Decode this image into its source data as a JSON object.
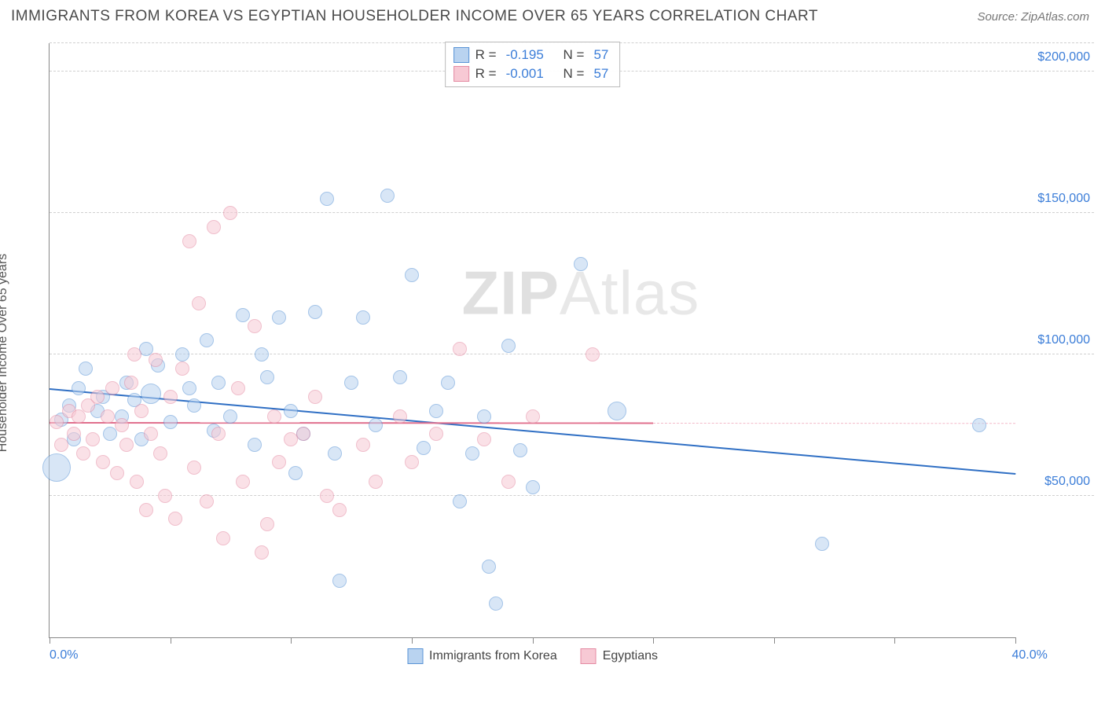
{
  "header": {
    "title": "IMMIGRANTS FROM KOREA VS EGYPTIAN HOUSEHOLDER INCOME OVER 65 YEARS CORRELATION CHART",
    "source": "Source: ZipAtlas.com"
  },
  "watermark": {
    "part1": "ZIP",
    "part2": "Atlas"
  },
  "chart": {
    "type": "scatter",
    "y_axis_label": "Householder Income Over 65 years",
    "background_color": "#ffffff",
    "grid_color": "#d0d0d0",
    "axis_color": "#888888",
    "xlim": [
      0,
      40
    ],
    "ylim": [
      0,
      210000
    ],
    "x_ticks_pct": [
      0,
      12.5,
      25,
      37.5,
      50,
      62.5,
      75,
      87.5,
      100
    ],
    "x_tick_labels": {
      "start": "0.0%",
      "end": "40.0%"
    },
    "y_gridlines": [
      50000,
      100000,
      150000,
      200000
    ],
    "y_tick_labels": [
      "$50,000",
      "$100,000",
      "$150,000",
      "$200,000"
    ],
    "legend_top": [
      {
        "swatch_fill": "#b9d3f0",
        "swatch_border": "#5a94d6",
        "r_label": "R =",
        "r": "-0.195",
        "n_label": "N =",
        "n": "57"
      },
      {
        "swatch_fill": "#f7c9d4",
        "swatch_border": "#e48ba3",
        "r_label": "R =",
        "r": "-0.001",
        "n_label": "N =",
        "n": "57"
      }
    ],
    "legend_bottom": [
      {
        "label": "Immigrants from Korea",
        "swatch_fill": "#b9d3f0",
        "swatch_border": "#5a94d6"
      },
      {
        "label": "Egyptians",
        "swatch_fill": "#f7c9d4",
        "swatch_border": "#e48ba3"
      }
    ],
    "series": [
      {
        "name": "korea",
        "fill": "#b9d3f0",
        "stroke": "#5a94d6",
        "fill_opacity": 0.55,
        "marker_radius": 9,
        "trend": {
          "y_at_x0": 88000,
          "y_at_x40": 58000,
          "color": "#2f6fc4",
          "dash_color": "#9bbce6"
        },
        "points": [
          {
            "x": 0.3,
            "y": 60000,
            "r": 18
          },
          {
            "x": 0.5,
            "y": 77000
          },
          {
            "x": 0.8,
            "y": 82000
          },
          {
            "x": 1.0,
            "y": 70000
          },
          {
            "x": 1.2,
            "y": 88000
          },
          {
            "x": 1.5,
            "y": 95000
          },
          {
            "x": 2.0,
            "y": 80000
          },
          {
            "x": 2.2,
            "y": 85000
          },
          {
            "x": 2.5,
            "y": 72000
          },
          {
            "x": 3.0,
            "y": 78000
          },
          {
            "x": 3.2,
            "y": 90000
          },
          {
            "x": 3.5,
            "y": 84000
          },
          {
            "x": 4.0,
            "y": 102000
          },
          {
            "x": 4.2,
            "y": 86000,
            "r": 13
          },
          {
            "x": 4.5,
            "y": 96000
          },
          {
            "x": 5.0,
            "y": 76000
          },
          {
            "x": 5.5,
            "y": 100000
          },
          {
            "x": 6.0,
            "y": 82000
          },
          {
            "x": 6.5,
            "y": 105000
          },
          {
            "x": 7.0,
            "y": 90000
          },
          {
            "x": 7.5,
            "y": 78000
          },
          {
            "x": 8.0,
            "y": 114000
          },
          {
            "x": 8.5,
            "y": 68000
          },
          {
            "x": 9.0,
            "y": 92000
          },
          {
            "x": 9.5,
            "y": 113000
          },
          {
            "x": 10.0,
            "y": 80000
          },
          {
            "x": 10.2,
            "y": 58000
          },
          {
            "x": 10.5,
            "y": 72000
          },
          {
            "x": 11.0,
            "y": 115000
          },
          {
            "x": 11.5,
            "y": 155000
          },
          {
            "x": 11.8,
            "y": 65000
          },
          {
            "x": 12.0,
            "y": 20000
          },
          {
            "x": 12.5,
            "y": 90000
          },
          {
            "x": 13.0,
            "y": 113000
          },
          {
            "x": 13.5,
            "y": 75000
          },
          {
            "x": 14.0,
            "y": 156000
          },
          {
            "x": 14.5,
            "y": 92000
          },
          {
            "x": 15.0,
            "y": 128000
          },
          {
            "x": 15.5,
            "y": 67000
          },
          {
            "x": 16.0,
            "y": 80000
          },
          {
            "x": 16.5,
            "y": 90000
          },
          {
            "x": 17.0,
            "y": 48000
          },
          {
            "x": 17.5,
            "y": 65000
          },
          {
            "x": 18.0,
            "y": 78000
          },
          {
            "x": 18.2,
            "y": 25000
          },
          {
            "x": 18.5,
            "y": 12000
          },
          {
            "x": 19.0,
            "y": 103000
          },
          {
            "x": 19.5,
            "y": 66000
          },
          {
            "x": 20.0,
            "y": 53000
          },
          {
            "x": 22.0,
            "y": 132000
          },
          {
            "x": 23.5,
            "y": 80000,
            "r": 12
          },
          {
            "x": 32.0,
            "y": 33000
          },
          {
            "x": 38.5,
            "y": 75000
          },
          {
            "x": 5.8,
            "y": 88000
          },
          {
            "x": 6.8,
            "y": 73000
          },
          {
            "x": 8.8,
            "y": 100000
          },
          {
            "x": 3.8,
            "y": 70000
          }
        ]
      },
      {
        "name": "egyptians",
        "fill": "#f7c9d4",
        "stroke": "#e48ba3",
        "fill_opacity": 0.55,
        "marker_radius": 9,
        "trend": {
          "y_at_x0": 76000,
          "y_at_x40": 75800,
          "color": "#e06f8d",
          "dash_color": "#f3b9c8",
          "solid_until_x": 25
        },
        "points": [
          {
            "x": 0.3,
            "y": 76000
          },
          {
            "x": 0.5,
            "y": 68000
          },
          {
            "x": 0.8,
            "y": 80000
          },
          {
            "x": 1.0,
            "y": 72000
          },
          {
            "x": 1.2,
            "y": 78000
          },
          {
            "x": 1.4,
            "y": 65000
          },
          {
            "x": 1.6,
            "y": 82000
          },
          {
            "x": 1.8,
            "y": 70000
          },
          {
            "x": 2.0,
            "y": 85000
          },
          {
            "x": 2.2,
            "y": 62000
          },
          {
            "x": 2.4,
            "y": 78000
          },
          {
            "x": 2.6,
            "y": 88000
          },
          {
            "x": 2.8,
            "y": 58000
          },
          {
            "x": 3.0,
            "y": 75000
          },
          {
            "x": 3.2,
            "y": 68000
          },
          {
            "x": 3.4,
            "y": 90000
          },
          {
            "x": 3.6,
            "y": 55000
          },
          {
            "x": 3.8,
            "y": 80000
          },
          {
            "x": 4.0,
            "y": 45000
          },
          {
            "x": 4.2,
            "y": 72000
          },
          {
            "x": 4.4,
            "y": 98000
          },
          {
            "x": 4.6,
            "y": 65000
          },
          {
            "x": 4.8,
            "y": 50000
          },
          {
            "x": 5.0,
            "y": 85000
          },
          {
            "x": 5.2,
            "y": 42000
          },
          {
            "x": 5.5,
            "y": 95000
          },
          {
            "x": 5.8,
            "y": 140000
          },
          {
            "x": 6.0,
            "y": 60000
          },
          {
            "x": 6.2,
            "y": 118000
          },
          {
            "x": 6.5,
            "y": 48000
          },
          {
            "x": 6.8,
            "y": 145000
          },
          {
            "x": 7.0,
            "y": 72000
          },
          {
            "x": 7.2,
            "y": 35000
          },
          {
            "x": 7.5,
            "y": 150000
          },
          {
            "x": 7.8,
            "y": 88000
          },
          {
            "x": 8.0,
            "y": 55000
          },
          {
            "x": 8.5,
            "y": 110000
          },
          {
            "x": 9.0,
            "y": 40000
          },
          {
            "x": 9.3,
            "y": 78000
          },
          {
            "x": 9.5,
            "y": 62000
          },
          {
            "x": 10.0,
            "y": 70000
          },
          {
            "x": 10.5,
            "y": 72000
          },
          {
            "x": 11.0,
            "y": 85000
          },
          {
            "x": 11.5,
            "y": 50000
          },
          {
            "x": 12.0,
            "y": 45000
          },
          {
            "x": 13.0,
            "y": 68000
          },
          {
            "x": 13.5,
            "y": 55000
          },
          {
            "x": 14.5,
            "y": 78000
          },
          {
            "x": 15.0,
            "y": 62000
          },
          {
            "x": 16.0,
            "y": 72000
          },
          {
            "x": 17.0,
            "y": 102000
          },
          {
            "x": 18.0,
            "y": 70000
          },
          {
            "x": 19.0,
            "y": 55000
          },
          {
            "x": 20.0,
            "y": 78000
          },
          {
            "x": 22.5,
            "y": 100000
          },
          {
            "x": 8.8,
            "y": 30000
          },
          {
            "x": 3.5,
            "y": 100000
          }
        ]
      }
    ]
  }
}
